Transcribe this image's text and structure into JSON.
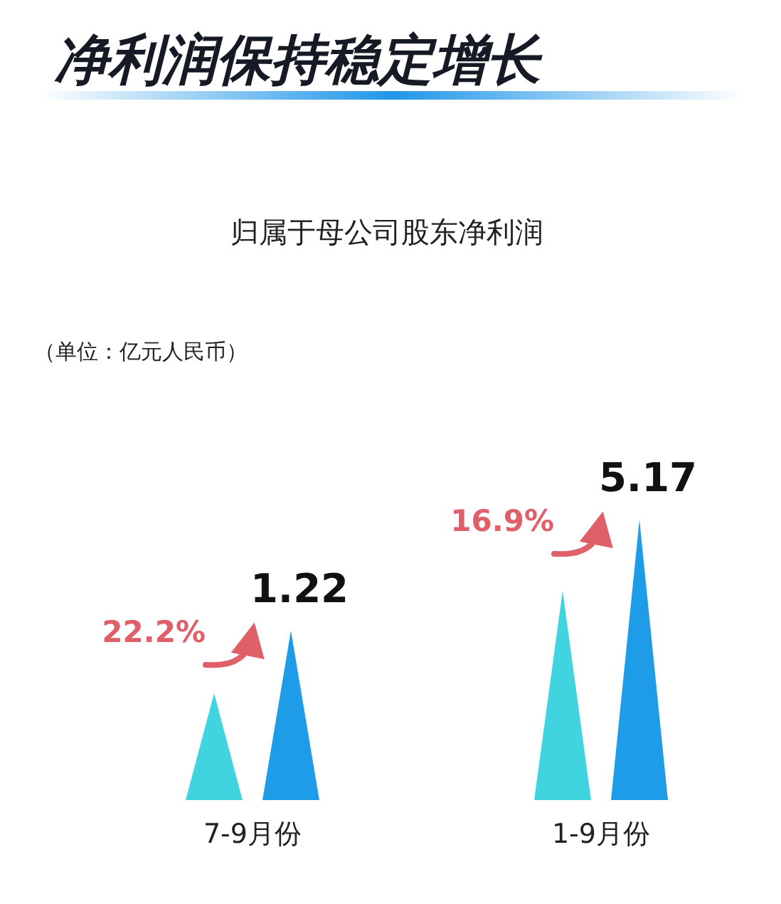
{
  "chart_data": {
    "type": "other",
    "title": "净利润保持稳定增长",
    "subtitle": "归属于母公司股东净利润",
    "annotations": [
      "（单位：亿元人民币）",
      "22.2%",
      "16.9%"
    ],
    "categories": [
      "7-9月份",
      "1-9月份"
    ],
    "data_labels": true,
    "series": [
      {
        "color": "#40d4e0",
        "values": [
          null,
          null
        ]
      },
      {
        "color": "#1e9ce8",
        "values": [
          1.22,
          5.17
        ]
      }
    ]
  }
}
